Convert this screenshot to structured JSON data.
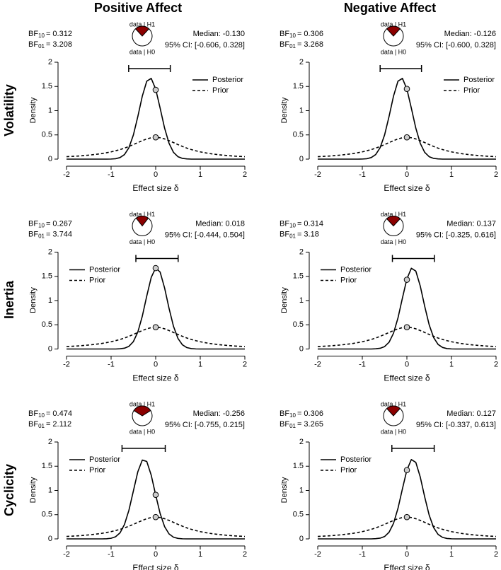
{
  "column_titles": [
    "Positive Affect",
    "Negative Affect"
  ],
  "row_labels": [
    "Volatility",
    "Inertia",
    "Cyclicity"
  ],
  "labels": {
    "bf": "BF",
    "sub10": "10",
    "sub01": "01",
    "eq": "=",
    "data_h1": "data | H1",
    "data_h0": "data | H0"
  },
  "chart_data": [
    {
      "type": "line",
      "legend": "top-right",
      "pie_color": "#8b0000",
      "bf10": 0.312,
      "bf01": 3.208,
      "median": "Median: -0.130",
      "ci": {
        "values": [
          -0.606,
          0.328
        ],
        "label": "95% CI: [-0.606, 0.328]"
      },
      "xlabel": "Effect size δ",
      "ylabel": "Density",
      "xlim": [
        -2,
        2
      ],
      "ylim": [
        0,
        2
      ],
      "xticks": [
        -2,
        -1,
        0,
        1,
        2
      ],
      "yticks": [
        0,
        0.5,
        1,
        1.5,
        2
      ],
      "x": [
        -2,
        -1.9,
        -1.8,
        -1.7,
        -1.6,
        -1.5,
        -1.4,
        -1.3,
        -1.2,
        -1.1,
        -1,
        -0.9,
        -0.8,
        -0.7,
        -0.6,
        -0.5,
        -0.4,
        -0.3,
        -0.2,
        -0.1,
        0,
        0.1,
        0.2,
        0.3,
        0.4,
        0.5,
        0.6,
        0.7,
        0.8,
        0.9,
        1,
        1.1,
        1.2,
        1.3,
        1.4,
        1.5,
        1.6,
        1.7,
        1.8,
        1.9,
        2
      ],
      "series": [
        {
          "name": "Posterior",
          "color": "#000000",
          "dash": false,
          "point": {
            "x": 0,
            "y": 1.43
          },
          "values": [
            0,
            0,
            0,
            0,
            0,
            0,
            0,
            0,
            0,
            0,
            0.002,
            0.008,
            0.032,
            0.094,
            0.237,
            0.499,
            0.88,
            1.3,
            1.609,
            1.667,
            1.446,
            1.052,
            0.64,
            0.326,
            0.139,
            0.05,
            0.015,
            0.004,
            0,
            0,
            0,
            0,
            0,
            0,
            0,
            0,
            0,
            0,
            0,
            0,
            0
          ]
        },
        {
          "name": "Prior",
          "color": "#000000",
          "dash": true,
          "point": {
            "x": 0,
            "y": 0.45
          },
          "values": [
            0.05,
            0.055,
            0.06,
            0.066,
            0.074,
            0.082,
            0.092,
            0.103,
            0.116,
            0.132,
            0.15,
            0.172,
            0.197,
            0.227,
            0.262,
            0.3,
            0.341,
            0.381,
            0.417,
            0.441,
            0.45,
            0.441,
            0.417,
            0.381,
            0.341,
            0.3,
            0.262,
            0.227,
            0.197,
            0.172,
            0.15,
            0.132,
            0.116,
            0.103,
            0.092,
            0.082,
            0.074,
            0.066,
            0.06,
            0.055,
            0.05
          ]
        }
      ]
    },
    {
      "type": "line",
      "legend": "top-right",
      "pie_color": "#8b0000",
      "bf10": 0.306,
      "bf01": 3.268,
      "median": "Median: -0.126",
      "ci": {
        "values": [
          -0.6,
          0.328
        ],
        "label": "95% CI: [-0.600, 0.328]"
      },
      "xlabel": "Effect size δ",
      "ylabel": "Density",
      "xlim": [
        -2,
        2
      ],
      "ylim": [
        0,
        2
      ],
      "xticks": [
        -2,
        -1,
        0,
        1,
        2
      ],
      "yticks": [
        0,
        0.5,
        1,
        1.5,
        2
      ],
      "x": [
        -2,
        -1.9,
        -1.8,
        -1.7,
        -1.6,
        -1.5,
        -1.4,
        -1.3,
        -1.2,
        -1.1,
        -1,
        -0.9,
        -0.8,
        -0.7,
        -0.6,
        -0.5,
        -0.4,
        -0.3,
        -0.2,
        -0.1,
        0,
        0.1,
        0.2,
        0.3,
        0.4,
        0.5,
        0.6,
        0.7,
        0.8,
        0.9,
        1,
        1.1,
        1.2,
        1.3,
        1.4,
        1.5,
        1.6,
        1.7,
        1.8,
        1.9,
        2
      ],
      "series": [
        {
          "name": "Posterior",
          "color": "#000000",
          "dash": false,
          "point": {
            "x": 0,
            "y": 1.45
          },
          "values": [
            0,
            0,
            0,
            0,
            0,
            0,
            0,
            0,
            0,
            0,
            0.002,
            0.008,
            0.032,
            0.094,
            0.237,
            0.499,
            0.88,
            1.3,
            1.609,
            1.667,
            1.446,
            1.052,
            0.64,
            0.326,
            0.139,
            0.05,
            0.015,
            0.004,
            0,
            0,
            0,
            0,
            0,
            0,
            0,
            0,
            0,
            0,
            0,
            0,
            0
          ]
        },
        {
          "name": "Prior",
          "color": "#000000",
          "dash": true,
          "point": {
            "x": 0,
            "y": 0.45
          },
          "values": [
            0.05,
            0.055,
            0.06,
            0.066,
            0.074,
            0.082,
            0.092,
            0.103,
            0.116,
            0.132,
            0.15,
            0.172,
            0.197,
            0.227,
            0.262,
            0.3,
            0.341,
            0.381,
            0.417,
            0.441,
            0.45,
            0.441,
            0.417,
            0.381,
            0.341,
            0.3,
            0.262,
            0.227,
            0.197,
            0.172,
            0.15,
            0.132,
            0.116,
            0.103,
            0.092,
            0.082,
            0.074,
            0.066,
            0.06,
            0.055,
            0.05
          ]
        }
      ]
    },
    {
      "type": "line",
      "legend": "top-left",
      "pie_color": "#8b0000",
      "bf10": 0.267,
      "bf01": 3.744,
      "median": "Median: 0.018",
      "ci": {
        "values": [
          -0.444,
          0.504
        ],
        "label": "95% CI: [-0.444, 0.504]"
      },
      "xlabel": "Effect size δ",
      "ylabel": "Density",
      "xlim": [
        -2,
        2
      ],
      "ylim": [
        0,
        2
      ],
      "xticks": [
        -2,
        -1,
        0,
        1,
        2
      ],
      "yticks": [
        0,
        0.5,
        1,
        1.5,
        2
      ],
      "x": [
        -2,
        -1.9,
        -1.8,
        -1.7,
        -1.6,
        -1.5,
        -1.4,
        -1.3,
        -1.2,
        -1.1,
        -1,
        -0.9,
        -0.8,
        -0.7,
        -0.6,
        -0.5,
        -0.4,
        -0.3,
        -0.2,
        -0.1,
        0,
        0.1,
        0.2,
        0.3,
        0.4,
        0.5,
        0.6,
        0.7,
        0.8,
        0.9,
        1,
        1.1,
        1.2,
        1.3,
        1.4,
        1.5,
        1.6,
        1.7,
        1.8,
        1.9,
        2
      ],
      "series": [
        {
          "name": "Posterior",
          "color": "#000000",
          "dash": false,
          "point": {
            "x": 0,
            "y": 1.67
          },
          "values": [
            0,
            0,
            0,
            0,
            0,
            0,
            0,
            0,
            0,
            0,
            0,
            0,
            0.004,
            0.017,
            0.055,
            0.153,
            0.351,
            0.677,
            1.094,
            1.478,
            1.673,
            1.588,
            1.26,
            0.838,
            0.467,
            0.218,
            0.086,
            0.029,
            0.008,
            0.002,
            0,
            0,
            0,
            0,
            0,
            0,
            0,
            0,
            0,
            0,
            0
          ]
        },
        {
          "name": "Prior",
          "color": "#000000",
          "dash": true,
          "point": {
            "x": 0,
            "y": 0.45
          },
          "values": [
            0.05,
            0.055,
            0.06,
            0.066,
            0.074,
            0.082,
            0.092,
            0.103,
            0.116,
            0.132,
            0.15,
            0.172,
            0.197,
            0.227,
            0.262,
            0.3,
            0.341,
            0.381,
            0.417,
            0.441,
            0.45,
            0.441,
            0.417,
            0.381,
            0.341,
            0.3,
            0.262,
            0.227,
            0.197,
            0.172,
            0.15,
            0.132,
            0.116,
            0.103,
            0.092,
            0.082,
            0.074,
            0.066,
            0.06,
            0.055,
            0.05
          ]
        }
      ]
    },
    {
      "type": "line",
      "legend": "top-left",
      "pie_color": "#8b0000",
      "bf10": 0.314,
      "bf01": 3.18,
      "median": "Median: 0.137",
      "ci": {
        "values": [
          -0.325,
          0.616
        ],
        "label": "95% CI: [-0.325, 0.616]"
      },
      "xlabel": "Effect size δ",
      "ylabel": "Density",
      "xlim": [
        -2,
        2
      ],
      "ylim": [
        0,
        2
      ],
      "xticks": [
        -2,
        -1,
        0,
        1,
        2
      ],
      "yticks": [
        0,
        0.5,
        1,
        1.5,
        2
      ],
      "x": [
        -2,
        -1.9,
        -1.8,
        -1.7,
        -1.6,
        -1.5,
        -1.4,
        -1.3,
        -1.2,
        -1.1,
        -1,
        -0.9,
        -0.8,
        -0.7,
        -0.6,
        -0.5,
        -0.4,
        -0.3,
        -0.2,
        -0.1,
        0,
        0.1,
        0.2,
        0.3,
        0.4,
        0.5,
        0.6,
        0.7,
        0.8,
        0.9,
        1,
        1.1,
        1.2,
        1.3,
        1.4,
        1.5,
        1.6,
        1.7,
        1.8,
        1.9,
        2
      ],
      "series": [
        {
          "name": "Posterior",
          "color": "#000000",
          "dash": false,
          "point": {
            "x": 0,
            "y": 1.43
          },
          "values": [
            0,
            0,
            0,
            0,
            0,
            0,
            0,
            0,
            0,
            0,
            0,
            0,
            0,
            0.004,
            0.015,
            0.05,
            0.139,
            0.326,
            0.64,
            1.052,
            1.446,
            1.667,
            1.609,
            1.3,
            0.88,
            0.499,
            0.237,
            0.094,
            0.032,
            0.008,
            0.002,
            0,
            0,
            0,
            0,
            0,
            0,
            0,
            0,
            0,
            0
          ]
        },
        {
          "name": "Prior",
          "color": "#000000",
          "dash": true,
          "point": {
            "x": 0,
            "y": 0.45
          },
          "values": [
            0.05,
            0.055,
            0.06,
            0.066,
            0.074,
            0.082,
            0.092,
            0.103,
            0.116,
            0.132,
            0.15,
            0.172,
            0.197,
            0.227,
            0.262,
            0.3,
            0.341,
            0.381,
            0.417,
            0.441,
            0.45,
            0.441,
            0.417,
            0.381,
            0.341,
            0.3,
            0.262,
            0.227,
            0.197,
            0.172,
            0.15,
            0.132,
            0.116,
            0.103,
            0.092,
            0.082,
            0.074,
            0.066,
            0.06,
            0.055,
            0.05
          ]
        }
      ]
    },
    {
      "type": "line",
      "legend": "top-left",
      "pie_color": "#8b0000",
      "bf10": 0.474,
      "bf01": 2.112,
      "median": "Median: -0.256",
      "ci": {
        "values": [
          -0.755,
          0.215
        ],
        "label": "95% CI: [-0.755, 0.215]"
      },
      "xlabel": "Effect size δ",
      "ylabel": "Density",
      "xlim": [
        -2,
        2
      ],
      "ylim": [
        0,
        2
      ],
      "xticks": [
        -2,
        -1,
        0,
        1,
        2
      ],
      "yticks": [
        0,
        0.5,
        1,
        1.5,
        2
      ],
      "x": [
        -2,
        -1.9,
        -1.8,
        -1.7,
        -1.6,
        -1.5,
        -1.4,
        -1.3,
        -1.2,
        -1.1,
        -1,
        -0.9,
        -0.8,
        -0.7,
        -0.6,
        -0.5,
        -0.4,
        -0.3,
        -0.2,
        -0.1,
        0,
        0.1,
        0.2,
        0.3,
        0.4,
        0.5,
        0.6,
        0.7,
        0.8,
        0.9,
        1,
        1.1,
        1.2,
        1.3,
        1.4,
        1.5,
        1.6,
        1.7,
        1.8,
        1.9,
        2
      ],
      "series": [
        {
          "name": "Posterior",
          "color": "#000000",
          "dash": false,
          "point": {
            "x": 0,
            "y": 0.91
          },
          "values": [
            0,
            0,
            0,
            0,
            0,
            0,
            0,
            0,
            0,
            0.003,
            0.013,
            0.044,
            0.124,
            0.297,
            0.592,
            0.99,
            1.387,
            1.627,
            1.598,
            1.315,
            0.906,
            0.523,
            0.253,
            0.102,
            0.035,
            0.01,
            0.002,
            0,
            0,
            0,
            0,
            0,
            0,
            0,
            0,
            0,
            0,
            0,
            0,
            0,
            0
          ]
        },
        {
          "name": "Prior",
          "color": "#000000",
          "dash": true,
          "point": {
            "x": 0,
            "y": 0.45
          },
          "values": [
            0.05,
            0.055,
            0.06,
            0.066,
            0.074,
            0.082,
            0.092,
            0.103,
            0.116,
            0.132,
            0.15,
            0.172,
            0.197,
            0.227,
            0.262,
            0.3,
            0.341,
            0.381,
            0.417,
            0.441,
            0.45,
            0.441,
            0.417,
            0.381,
            0.341,
            0.3,
            0.262,
            0.227,
            0.197,
            0.172,
            0.15,
            0.132,
            0.116,
            0.103,
            0.092,
            0.082,
            0.074,
            0.066,
            0.06,
            0.055,
            0.05
          ]
        }
      ]
    },
    {
      "type": "line",
      "legend": "top-left",
      "pie_color": "#8b0000",
      "bf10": 0.306,
      "bf01": 3.265,
      "median": "Median: 0.127",
      "ci": {
        "values": [
          -0.337,
          0.613
        ],
        "label": "95% CI: [-0.337, 0.613]"
      },
      "xlabel": "Effect size δ",
      "ylabel": "Density",
      "xlim": [
        -2,
        2
      ],
      "ylim": [
        0,
        2
      ],
      "xticks": [
        -2,
        -1,
        0,
        1,
        2
      ],
      "yticks": [
        0,
        0.5,
        1,
        1.5,
        2
      ],
      "x": [
        -2,
        -1.9,
        -1.8,
        -1.7,
        -1.6,
        -1.5,
        -1.4,
        -1.3,
        -1.2,
        -1.1,
        -1,
        -0.9,
        -0.8,
        -0.7,
        -0.6,
        -0.5,
        -0.4,
        -0.3,
        -0.2,
        -0.1,
        0,
        0.1,
        0.2,
        0.3,
        0.4,
        0.5,
        0.6,
        0.7,
        0.8,
        0.9,
        1,
        1.1,
        1.2,
        1.3,
        1.4,
        1.5,
        1.6,
        1.7,
        1.8,
        1.9,
        2
      ],
      "series": [
        {
          "name": "Posterior",
          "color": "#000000",
          "dash": false,
          "point": {
            "x": 0,
            "y": 1.42
          },
          "values": [
            0,
            0,
            0,
            0,
            0,
            0,
            0,
            0,
            0,
            0,
            0,
            0,
            0,
            0.004,
            0.015,
            0.049,
            0.137,
            0.32,
            0.629,
            1.033,
            1.42,
            1.637,
            1.58,
            1.277,
            0.864,
            0.49,
            0.233,
            0.092,
            0.031,
            0.008,
            0.002,
            0,
            0,
            0,
            0,
            0,
            0,
            0,
            0,
            0,
            0
          ]
        },
        {
          "name": "Prior",
          "color": "#000000",
          "dash": true,
          "point": {
            "x": 0,
            "y": 0.45
          },
          "values": [
            0.05,
            0.055,
            0.06,
            0.066,
            0.074,
            0.082,
            0.092,
            0.103,
            0.116,
            0.132,
            0.15,
            0.172,
            0.197,
            0.227,
            0.262,
            0.3,
            0.341,
            0.381,
            0.417,
            0.441,
            0.45,
            0.441,
            0.417,
            0.381,
            0.341,
            0.3,
            0.262,
            0.227,
            0.197,
            0.172,
            0.15,
            0.132,
            0.116,
            0.103,
            0.092,
            0.082,
            0.074,
            0.066,
            0.06,
            0.055,
            0.05
          ]
        }
      ]
    }
  ]
}
